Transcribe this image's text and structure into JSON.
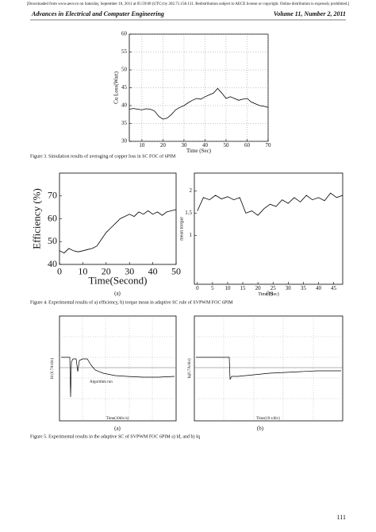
{
  "download_notice": "[Downloaded from www.aece.ro on Saturday, September 10, 2011 at 05:59:00 (UTC) by 202.71.158.131. Redistribution subject to AECE license or copyright. Online distribution is expressly prohibited.]",
  "journal": "Advances in Electrical and Computer Engineering",
  "volume": "Volume 11, Number 2, 2011",
  "chart_data": [
    {
      "type": "line",
      "xlabel": "Time (Sec)",
      "ylabel": "Cu Loss(Watt)",
      "grid": true,
      "color": "#000000",
      "xlim": [
        4,
        70
      ],
      "xticks": [
        10,
        20,
        30,
        40,
        50,
        60,
        70
      ],
      "ylim": [
        30,
        60
      ],
      "yticks": [
        30,
        35,
        40,
        45,
        50,
        55,
        60
      ],
      "x": [
        4,
        6,
        8,
        10,
        12,
        14,
        16,
        18,
        20,
        22,
        24,
        26,
        28,
        30,
        32,
        34,
        36,
        38,
        40,
        42,
        44,
        46,
        48,
        50,
        52,
        54,
        56,
        58,
        60,
        62,
        64,
        66,
        68,
        70
      ],
      "values": [
        39,
        39.2,
        39,
        38.8,
        39.1,
        39,
        38.5,
        37,
        36.2,
        36.5,
        37.5,
        38.8,
        39.5,
        40,
        40.8,
        41.5,
        42,
        41.8,
        42.5,
        43,
        43.5,
        44.8,
        43.5,
        42,
        42.5,
        42,
        41.5,
        41.8,
        42,
        41,
        40.5,
        40,
        39.8,
        39.5
      ]
    },
    {
      "type": "line",
      "xlabel": "Time(Second)",
      "ylabel": "Efficiency (%)",
      "grid": false,
      "color": "#000000",
      "xlim": [
        0,
        50
      ],
      "xticks": [
        0,
        10,
        20,
        30,
        40,
        50
      ],
      "ylim": [
        40,
        80
      ],
      "yticks": [
        40,
        50,
        60,
        70
      ],
      "x": [
        0,
        2,
        4,
        6,
        8,
        10,
        12,
        14,
        16,
        18,
        20,
        22,
        24,
        26,
        28,
        30,
        32,
        34,
        36,
        38,
        40,
        42,
        44,
        46,
        48,
        50
      ],
      "values": [
        46,
        45,
        47,
        46,
        45.5,
        46,
        46.5,
        47,
        48,
        51,
        54,
        56,
        58,
        60,
        61,
        62,
        61,
        63,
        62,
        63.5,
        62,
        63,
        61.5,
        63,
        63.5,
        64
      ]
    },
    {
      "type": "line",
      "xlabel": "Time (Sec)",
      "ylabel": "mean torque",
      "grid": false,
      "color": "#000000",
      "xlim": [
        -1,
        48
      ],
      "xticks": [
        0,
        5,
        10,
        15,
        20,
        25,
        30,
        35,
        40,
        45
      ],
      "ylim": [
        -0.1,
        2.4
      ],
      "yticks": [
        1,
        1.5,
        2
      ],
      "x": [
        0,
        2,
        4,
        6,
        8,
        10,
        12,
        14,
        16,
        18,
        20,
        22,
        24,
        26,
        28,
        30,
        32,
        34,
        36,
        38,
        40,
        42,
        44,
        46,
        48
      ],
      "values": [
        1.55,
        1.85,
        1.8,
        1.9,
        1.82,
        1.87,
        1.8,
        1.85,
        1.5,
        1.55,
        1.45,
        1.6,
        1.7,
        1.65,
        1.8,
        1.72,
        1.85,
        1.75,
        1.9,
        1.8,
        1.85,
        1.78,
        1.95,
        1.85,
        1.9
      ]
    }
  ],
  "captions": [
    "Figure 3. Simulation results of averaging of copper loss in SC  FOC of 6PIM",
    "Figure 4. Experimental results of a) efficiency, b) torque mean in adaptive SC rule of SVPWM FOC 6PIM",
    "Figure 5. Experimental results in the adaptive SC of SVPWM FOC 6PIM a) Id, and b) Iq"
  ],
  "panel_labels": [
    "(a)",
    "(b)",
    "(a)",
    "(b)"
  ],
  "figure5": {
    "a_ylabel": "Id (0.7A/div)",
    "a_annotation": "Algorithm run",
    "a_xlabel": "Time(10div/s)",
    "b_ylabel": "Iq(0.7A/div)",
    "b_xlabel": "Time(10 s/div)"
  },
  "page_number": "111"
}
